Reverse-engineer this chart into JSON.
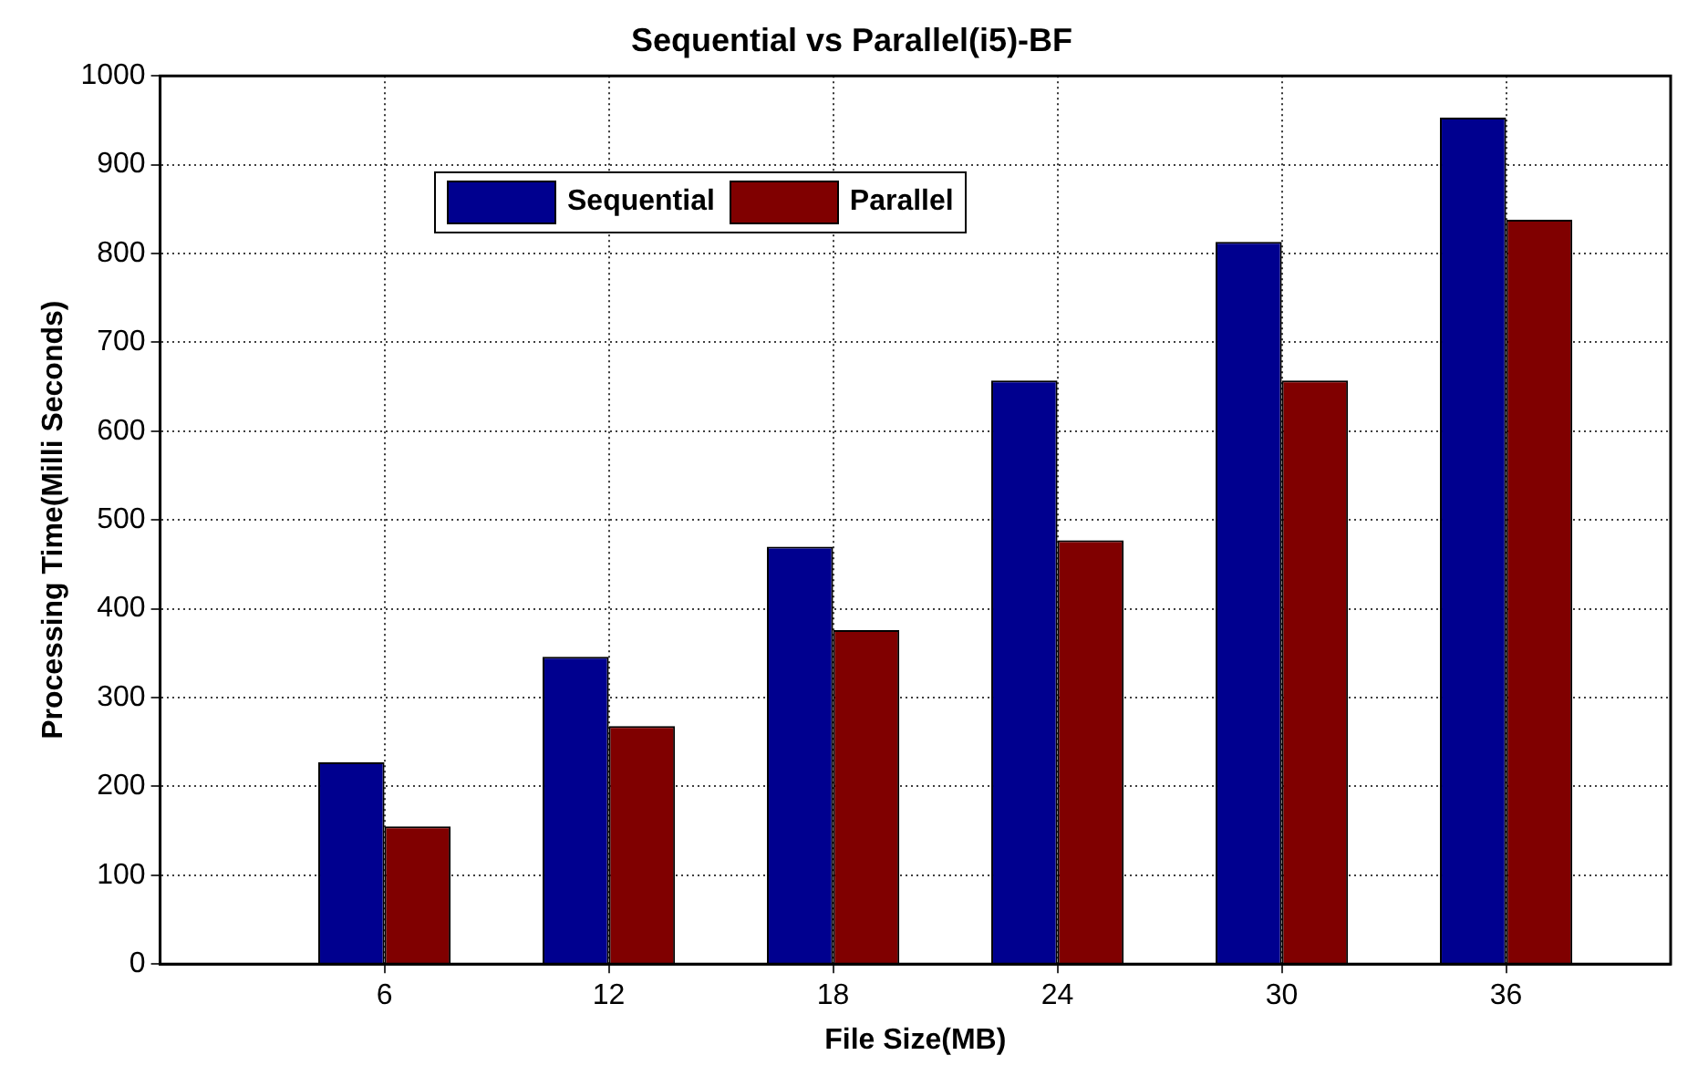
{
  "chart_data": {
    "type": "bar",
    "title": "Sequential vs Parallel(i5)-BF",
    "xlabel": "File Size(MB)",
    "ylabel": "Processing Time(Milli Seconds)",
    "x": [
      6,
      12,
      18,
      24,
      30,
      36
    ],
    "xlim": [
      0,
      40.4
    ],
    "xticks": [
      6,
      12,
      18,
      24,
      30,
      36
    ],
    "series": [
      {
        "name": "Sequential",
        "color": "#00008f",
        "values": [
          227,
          346,
          470,
          657,
          813,
          953
        ]
      },
      {
        "name": "Parallel",
        "color": "#800000",
        "values": [
          155,
          268,
          376,
          477,
          657,
          838
        ]
      }
    ],
    "ylim": [
      0,
      1000
    ],
    "yticks": [
      0,
      100,
      200,
      300,
      400,
      500,
      600,
      700,
      800,
      900,
      1000
    ],
    "grid": true,
    "legend": "top left"
  }
}
